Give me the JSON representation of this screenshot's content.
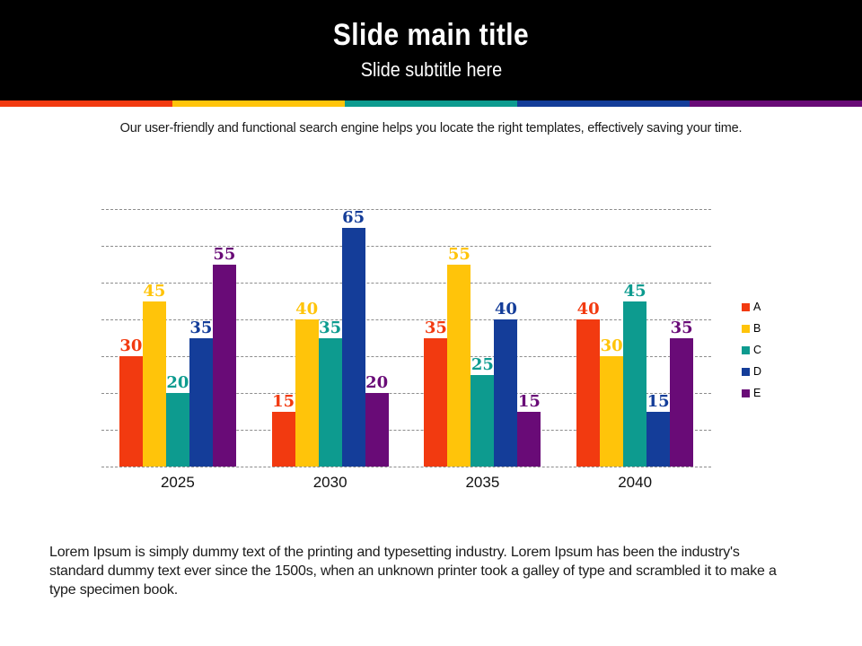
{
  "header": {
    "title": "Slide main title",
    "subtitle": "Slide subtitle here"
  },
  "stripe_colors": [
    "#F23A10",
    "#FFC40A",
    "#0D9B8F",
    "#143D99",
    "#690B77"
  ],
  "description": "Our user-friendly and functional search engine helps you locate the right templates, effectively saving your time.",
  "chart_data": {
    "type": "bar",
    "title": "",
    "xlabel": "",
    "ylabel": "",
    "categories": [
      "2025",
      "2030",
      "2035",
      "2040"
    ],
    "series": [
      {
        "name": "A",
        "color": "#F23A10",
        "values": [
          30,
          15,
          35,
          40
        ]
      },
      {
        "name": "B",
        "color": "#FFC40A",
        "values": [
          45,
          40,
          55,
          30
        ]
      },
      {
        "name": "C",
        "color": "#0D9B8F",
        "values": [
          20,
          35,
          25,
          45
        ]
      },
      {
        "name": "D",
        "color": "#143D99",
        "values": [
          35,
          65,
          40,
          15
        ]
      },
      {
        "name": "E",
        "color": "#690B77",
        "values": [
          55,
          20,
          15,
          35
        ]
      }
    ],
    "ylim": [
      0,
      70
    ],
    "grid_step": 10,
    "grid": "horizontal-dashed",
    "y_axis_labels_visible": false,
    "data_labels": true,
    "legend_position": "right",
    "legend_labels": [
      "A",
      "B",
      "C",
      "D",
      "E"
    ]
  },
  "footer_paragraph": "Lorem Ipsum is simply dummy text of the printing and typesetting industry. Lorem Ipsum has been the industry's standard dummy text ever since the 1500s, when an unknown printer took a galley of type and scrambled it to make a type specimen book."
}
